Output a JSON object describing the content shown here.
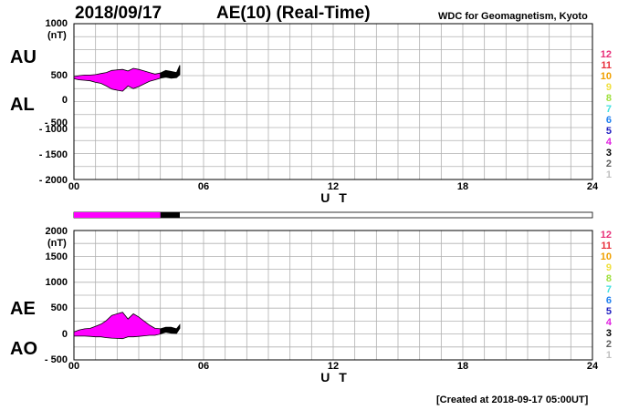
{
  "header": {
    "date": "2018/09/17",
    "title": "AE(10) (Real-Time)",
    "organization": "WDC for Geomagnetism, Kyoto"
  },
  "footer": {
    "created": "[Created at 2018-09-17 05:00UT]"
  },
  "legend": {
    "items": [
      {
        "label": "12",
        "color": "#e8307a"
      },
      {
        "label": "11",
        "color": "#e8303c"
      },
      {
        "label": "10",
        "color": "#f0a000"
      },
      {
        "label": "9",
        "color": "#f0e040"
      },
      {
        "label": "8",
        "color": "#a0e040"
      },
      {
        "label": "7",
        "color": "#40e0e0"
      },
      {
        "label": "6",
        "color": "#2080f0"
      },
      {
        "label": "5",
        "color": "#2020c0"
      },
      {
        "label": "4",
        "color": "#e020e0"
      },
      {
        "label": "3",
        "color": "#000000"
      },
      {
        "label": "2",
        "color": "#606060"
      },
      {
        "label": "1",
        "color": "#c0c0c0"
      }
    ]
  },
  "chart_data": [
    {
      "type": "area",
      "name": "AU/AL",
      "side_labels": {
        "upper": "AU",
        "lower": "AL"
      },
      "unit": "(nT)",
      "xlabel": "U T",
      "xlim": [
        0,
        24
      ],
      "ylim": [
        -2000,
        1000
      ],
      "x_ticks": [
        "00",
        "06",
        "12",
        "18",
        "24"
      ],
      "y_ticks": [
        "1000",
        "500",
        "0",
        "- 500",
        "- 1000",
        "- 1500",
        "- 2000"
      ],
      "grid": true,
      "fill_color": "#ff00ff",
      "recent_color": "#000000",
      "recent_from_hour": 4.0,
      "hours": [
        0.0,
        0.25,
        0.5,
        0.75,
        1.0,
        1.25,
        1.5,
        1.75,
        2.0,
        2.25,
        2.5,
        2.75,
        3.0,
        3.25,
        3.5,
        3.75,
        4.0,
        4.25,
        4.5,
        4.75,
        4.9
      ],
      "au": [
        -20,
        0,
        10,
        10,
        20,
        40,
        60,
        100,
        110,
        120,
        90,
        140,
        120,
        90,
        60,
        30,
        50,
        100,
        80,
        60,
        200
      ],
      "al": [
        -60,
        -80,
        -90,
        -100,
        -130,
        -150,
        -200,
        -260,
        -280,
        -300,
        -200,
        -250,
        -210,
        -160,
        -110,
        -80,
        -50,
        -30,
        -50,
        -40,
        20
      ]
    },
    {
      "type": "area",
      "name": "AE/AO",
      "side_labels": {
        "upper": "AE",
        "lower": "AO"
      },
      "unit": "(nT)",
      "xlabel": "U T",
      "xlim": [
        0,
        24
      ],
      "ylim": [
        -500,
        2000
      ],
      "x_ticks": [
        "00",
        "06",
        "12",
        "18",
        "24"
      ],
      "y_ticks": [
        "2000",
        "1500",
        "1000",
        "500",
        "0",
        "- 500"
      ],
      "grid": true,
      "fill_color": "#ff00ff",
      "recent_color": "#000000",
      "recent_from_hour": 4.0,
      "hours": [
        0.0,
        0.25,
        0.5,
        0.75,
        1.0,
        1.25,
        1.5,
        1.75,
        2.0,
        2.25,
        2.5,
        2.75,
        3.0,
        3.25,
        3.5,
        3.75,
        4.0,
        4.25,
        4.5,
        4.75,
        4.9
      ],
      "ae": [
        40,
        80,
        100,
        110,
        150,
        190,
        260,
        360,
        390,
        420,
        290,
        390,
        330,
        250,
        170,
        110,
        100,
        130,
        130,
        100,
        180
      ],
      "ao": [
        -40,
        -40,
        -40,
        -45,
        -55,
        -55,
        -70,
        -80,
        -85,
        -90,
        -55,
        -55,
        -45,
        -35,
        -25,
        -25,
        0,
        35,
        15,
        10,
        110
      ]
    }
  ],
  "data_coverage": {
    "filled_hours": 4.9,
    "recent_from_hour": 4.0,
    "total_hours": 24
  }
}
